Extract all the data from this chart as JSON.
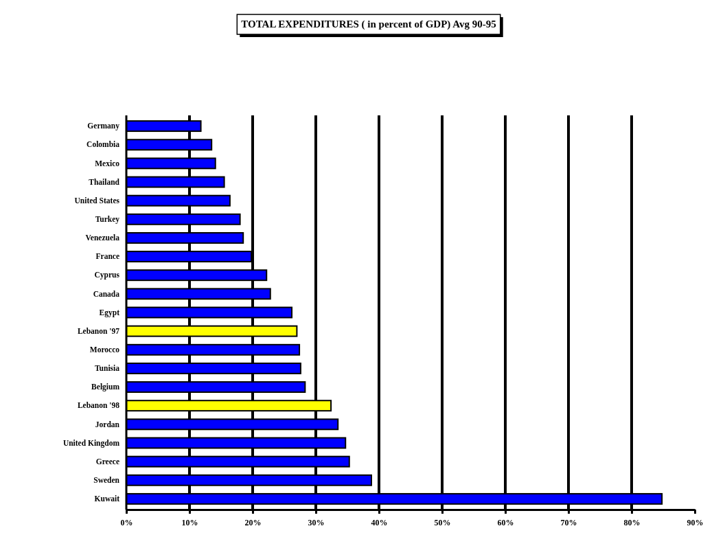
{
  "chart_data": {
    "type": "bar",
    "orientation": "horizontal",
    "title": "TOTAL EXPENDITURES ( in percent of GDP) Avg 90-95",
    "categories": [
      "Germany",
      "Colombia",
      "Mexico",
      "Thailand",
      "United States",
      "Turkey",
      "Venezuela",
      "France",
      "Cyprus",
      "Canada",
      "Egypt",
      "Lebanon '97",
      "Morocco",
      "Tunisia",
      "Belgium",
      "Lebanon '98",
      "Jordan",
      "United Kingdom",
      "Greece",
      "Sweden",
      "Kuwait"
    ],
    "values": [
      11.8,
      13.5,
      14.1,
      15.5,
      16.4,
      18.0,
      18.5,
      19.8,
      22.2,
      22.8,
      26.2,
      27.0,
      27.4,
      27.6,
      28.3,
      32.4,
      33.5,
      34.7,
      35.3,
      38.8,
      84.8
    ],
    "colors": [
      "#0000ff",
      "#0000ff",
      "#0000ff",
      "#0000ff",
      "#0000ff",
      "#0000ff",
      "#0000ff",
      "#0000ff",
      "#0000ff",
      "#0000ff",
      "#0000ff",
      "#ffff00",
      "#0000ff",
      "#0000ff",
      "#0000ff",
      "#ffff00",
      "#0000ff",
      "#0000ff",
      "#0000ff",
      "#0000ff",
      "#0000ff"
    ],
    "xlim": [
      0,
      90
    ],
    "xticks": [
      {
        "value": 0,
        "label": "0%"
      },
      {
        "value": 10,
        "label": "10%"
      },
      {
        "value": 20,
        "label": "20%"
      },
      {
        "value": 30,
        "label": "30%"
      },
      {
        "value": 40,
        "label": "40%"
      },
      {
        "value": 50,
        "label": "50%"
      },
      {
        "value": 60,
        "label": "60%"
      },
      {
        "value": 70,
        "label": "70%"
      },
      {
        "value": 80,
        "label": "80%"
      },
      {
        "value": 90,
        "label": "90%"
      }
    ],
    "grid": "x"
  }
}
